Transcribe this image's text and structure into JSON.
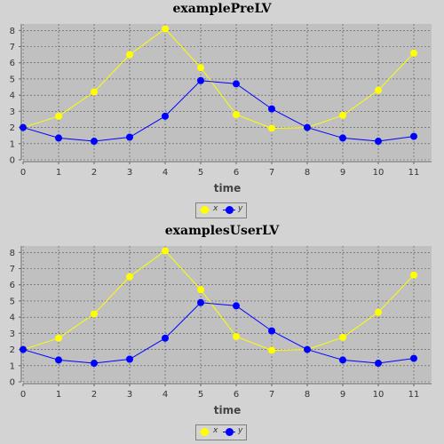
{
  "chart_data": [
    {
      "type": "line",
      "title": "examplePreLV",
      "xlabel": "time",
      "ylabel": "",
      "xlim": [
        0,
        11.5
      ],
      "ylim": [
        0,
        8.4
      ],
      "x": [
        0,
        1,
        2,
        3,
        4,
        5,
        6,
        7,
        8,
        9,
        10,
        11
      ],
      "xticks": [
        "0",
        "1",
        "2",
        "3",
        "4",
        "5",
        "6",
        "7",
        "8",
        "9",
        "10",
        "11"
      ],
      "yticks": [
        "0",
        "1",
        "2",
        "3",
        "4",
        "5",
        "6",
        "7",
        "8"
      ],
      "grid": true,
      "legend_position": "bottom",
      "series": [
        {
          "name": "x",
          "color": "#ffff00",
          "values": [
            2.0,
            2.7,
            4.2,
            6.5,
            8.1,
            5.7,
            2.8,
            1.95,
            2.0,
            2.75,
            4.3,
            6.6
          ]
        },
        {
          "name": "y",
          "color": "#0000ff",
          "values": [
            2.0,
            1.35,
            1.15,
            1.4,
            2.7,
            4.9,
            4.7,
            3.15,
            2.0,
            1.35,
            1.15,
            1.45
          ]
        }
      ]
    },
    {
      "type": "line",
      "title": "examplesUserLV",
      "xlabel": "time",
      "ylabel": "",
      "xlim": [
        0,
        11.5
      ],
      "ylim": [
        0,
        8.4
      ],
      "x": [
        0,
        1,
        2,
        3,
        4,
        5,
        6,
        7,
        8,
        9,
        10,
        11
      ],
      "xticks": [
        "0",
        "1",
        "2",
        "3",
        "4",
        "5",
        "6",
        "7",
        "8",
        "9",
        "10",
        "11"
      ],
      "yticks": [
        "0",
        "1",
        "2",
        "3",
        "4",
        "5",
        "6",
        "7",
        "8"
      ],
      "grid": true,
      "legend_position": "bottom",
      "series": [
        {
          "name": "x",
          "color": "#ffff00",
          "values": [
            2.0,
            2.7,
            4.2,
            6.5,
            8.1,
            5.7,
            2.8,
            1.95,
            2.0,
            2.75,
            4.3,
            6.6
          ]
        },
        {
          "name": "y",
          "color": "#0000ff",
          "values": [
            2.0,
            1.35,
            1.15,
            1.4,
            2.7,
            4.9,
            4.7,
            3.15,
            2.0,
            1.35,
            1.15,
            1.45
          ]
        }
      ]
    }
  ]
}
